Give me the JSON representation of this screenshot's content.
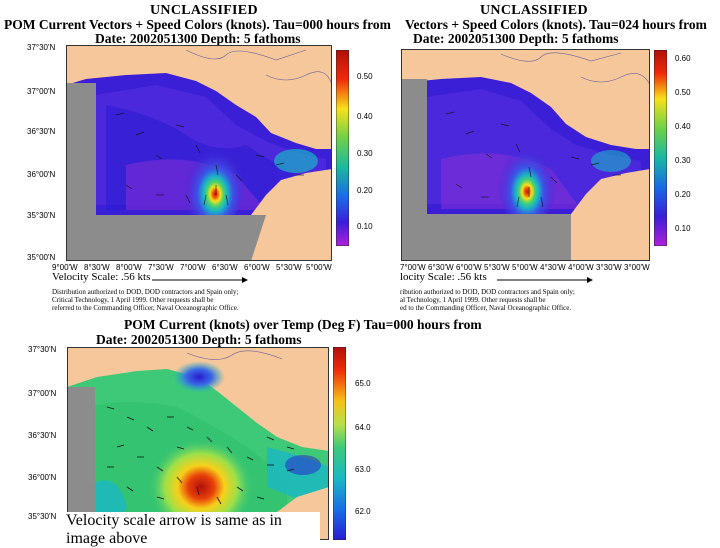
{
  "top_left": {
    "classification": "UNCLASSIFIED",
    "title": "POM Current Vectors + Speed Colors (knots).  Tau=000 hours from",
    "subtitle": "Date: 2002051300   Depth: 5 fathoms",
    "lat_labels": [
      "37°30'N",
      "37°00'N",
      "36°30'N",
      "36°00'N",
      "35°30'N",
      "35°00'N"
    ],
    "lon_labels": [
      "9°00'W",
      "8°30'W",
      "8°00'W",
      "7°30'W",
      "7°00'W",
      "6°30'W",
      "6°00'W",
      "5°30'W",
      "5°00'W"
    ],
    "colorbar_labels": [
      "0.50",
      "0.40",
      "0.30",
      "0.20",
      "0.10"
    ],
    "velocity_scale": "Velocity Scale:  .56 kts",
    "distribution": [
      "Distribution authorized to DOD, DOD contractors and Spain only;",
      "Critical Technology, 1 April 1999.  Other requests shall be",
      "referred to the Commanding Officer, Naval Oceanographic Office."
    ]
  },
  "top_right": {
    "classification": "UNCLASSIFIED",
    "title": "Vectors + Speed Colors (knots).  Tau=024 hours from",
    "subtitle": "Date: 2002051300   Depth: 5 fathoms",
    "lon_labels": [
      "7°00'W",
      "6°30'W",
      "6°00'W",
      "5°30'W",
      "5°00'W",
      "4°30'W",
      "4°00'W",
      "3°30'W",
      "3°00'W"
    ],
    "colorbar_labels": [
      "0.60",
      "0.50",
      "0.40",
      "0.30",
      "0.20",
      "0.10"
    ],
    "velocity_scale": "locity Scale:  .56 kts",
    "distribution": [
      "ribution authorized to DOD, DOD contractors and Spain only;",
      "al Technology, 1 April 1999.  Other requests shall be",
      "ed to the Commanding Officer, Naval Oceanographic Office."
    ]
  },
  "bottom": {
    "title": "POM Current (knots) over Temp (Deg F)  Tau=000 hours from",
    "subtitle": "Date: 2002051300   Depth: 5 fathoms",
    "lat_labels": [
      "37°30'N",
      "37°00'N",
      "36°30'N",
      "36°00'N",
      "35°30'N"
    ],
    "colorbar_labels": [
      "65.0",
      "64.0",
      "63.0",
      "62.0"
    ],
    "caption": "Velocity scale arrow is same as in image above"
  },
  "colors": {
    "land": "#f5c79a",
    "land_grey": "#8c8c8c",
    "sea_low": "#3a1fd6",
    "sea_high": "#cc1a0a",
    "temp_mid": "#3ec978"
  }
}
